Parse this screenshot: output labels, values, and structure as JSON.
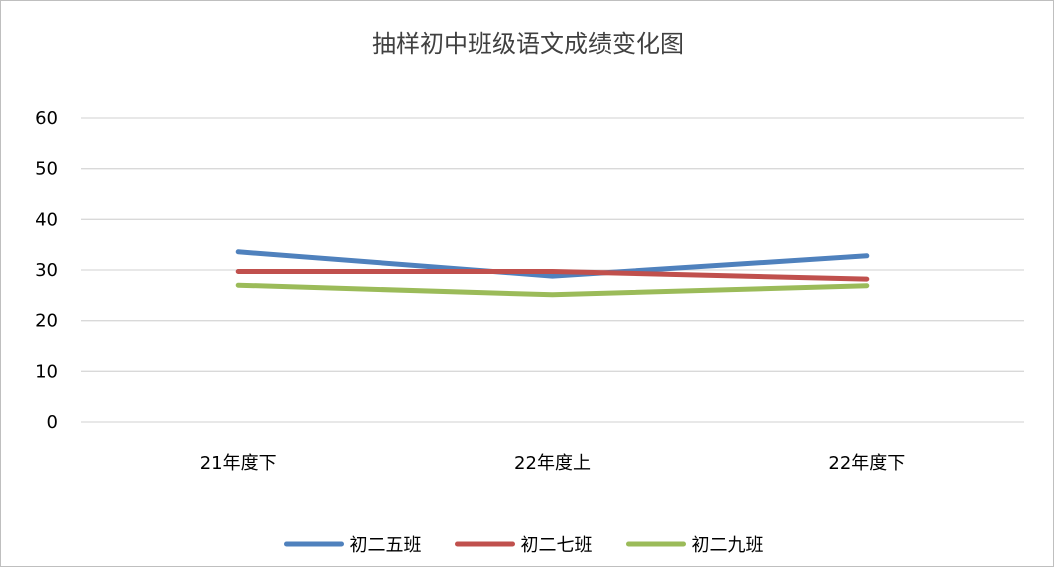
{
  "chart_data": {
    "type": "line",
    "title": "抽样初中班级语文成绩变化图",
    "categories": [
      "21年度下",
      "22年度上",
      "22年度下"
    ],
    "series": [
      {
        "name": "初二五班",
        "color": "#4f81bd",
        "values": [
          33.6,
          28.8,
          32.8
        ]
      },
      {
        "name": "初二七班",
        "color": "#c0504d",
        "values": [
          29.7,
          29.7,
          28.2
        ]
      },
      {
        "name": "初二九班",
        "color": "#9bbb59",
        "values": [
          27.0,
          25.1,
          26.9
        ]
      }
    ],
    "xlabel": "",
    "ylabel": "",
    "ylim": [
      0,
      60
    ],
    "yticks": [
      0,
      10,
      20,
      30,
      40,
      50,
      60
    ],
    "grid": true,
    "legend_position": "bottom",
    "colors": {
      "gridline": "#d9d9d9",
      "title": "#404040",
      "border": "#bfbfbf"
    }
  }
}
